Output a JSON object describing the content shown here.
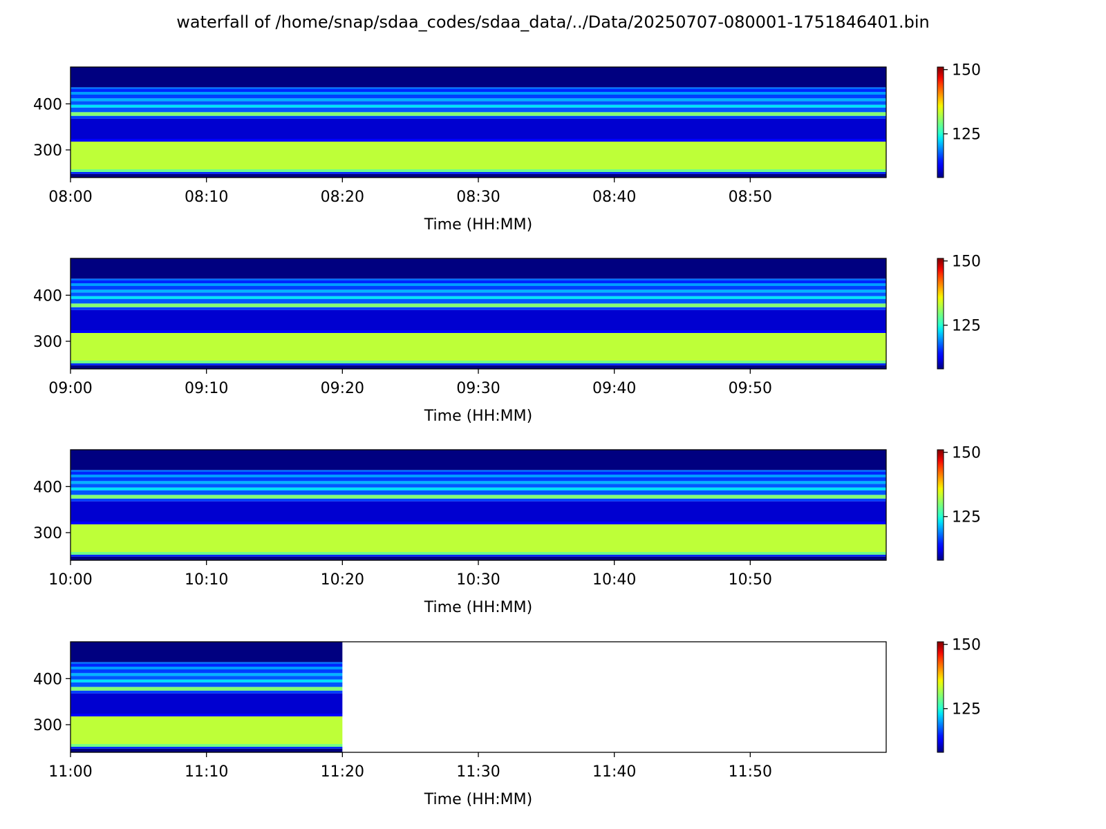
{
  "figure": {
    "title": "waterfall of /home/snap/sdaa_codes/sdaa_data/../Data/20250707-080001-1751846401.bin"
  },
  "chart_data": [
    {
      "type": "heatmap",
      "colormap": "jet",
      "xlabel": "Time (HH:MM)",
      "ylabel": "",
      "x_range": [
        "08:00",
        "09:00"
      ],
      "x_ticks": [
        "08:00",
        "08:10",
        "08:20",
        "08:30",
        "08:40",
        "08:50"
      ],
      "ylim": [
        240,
        480
      ],
      "y_ticks": [
        300,
        400
      ],
      "data_end": "09:00",
      "colorbar": {
        "vmin": 108,
        "vmax": 151,
        "ticks": [
          125,
          150
        ]
      },
      "bands": [
        {
          "from": 240,
          "to": 248,
          "value": 108
        },
        {
          "from": 248,
          "to": 252,
          "value": 115
        },
        {
          "from": 252,
          "to": 258,
          "value": 129
        },
        {
          "from": 258,
          "to": 318,
          "value": 133
        },
        {
          "from": 318,
          "to": 324,
          "value": 113
        },
        {
          "from": 324,
          "to": 368,
          "value": 111
        },
        {
          "from": 368,
          "to": 374,
          "value": 116
        },
        {
          "from": 374,
          "to": 382,
          "value": 130
        },
        {
          "from": 382,
          "to": 392,
          "value": 117
        },
        {
          "from": 392,
          "to": 398,
          "value": 123
        },
        {
          "from": 398,
          "to": 406,
          "value": 117
        },
        {
          "from": 406,
          "to": 412,
          "value": 121
        },
        {
          "from": 412,
          "to": 420,
          "value": 116
        },
        {
          "from": 420,
          "to": 426,
          "value": 120
        },
        {
          "from": 426,
          "to": 432,
          "value": 115
        },
        {
          "from": 432,
          "to": 436,
          "value": 118
        },
        {
          "from": 436,
          "to": 480,
          "value": 108
        }
      ]
    },
    {
      "type": "heatmap",
      "colormap": "jet",
      "xlabel": "Time (HH:MM)",
      "ylabel": "",
      "x_range": [
        "09:00",
        "10:00"
      ],
      "x_ticks": [
        "09:00",
        "09:10",
        "09:20",
        "09:30",
        "09:40",
        "09:50"
      ],
      "ylim": [
        240,
        480
      ],
      "y_ticks": [
        300,
        400
      ],
      "data_end": "10:00",
      "colorbar": {
        "vmin": 108,
        "vmax": 151,
        "ticks": [
          125,
          150
        ]
      },
      "bands": [
        {
          "from": 240,
          "to": 248,
          "value": 108
        },
        {
          "from": 248,
          "to": 252,
          "value": 115
        },
        {
          "from": 252,
          "to": 258,
          "value": 129
        },
        {
          "from": 258,
          "to": 318,
          "value": 133
        },
        {
          "from": 318,
          "to": 324,
          "value": 113
        },
        {
          "from": 324,
          "to": 368,
          "value": 111
        },
        {
          "from": 368,
          "to": 374,
          "value": 116
        },
        {
          "from": 374,
          "to": 382,
          "value": 130
        },
        {
          "from": 382,
          "to": 392,
          "value": 117
        },
        {
          "from": 392,
          "to": 398,
          "value": 123
        },
        {
          "from": 398,
          "to": 406,
          "value": 117
        },
        {
          "from": 406,
          "to": 412,
          "value": 121
        },
        {
          "from": 412,
          "to": 420,
          "value": 116
        },
        {
          "from": 420,
          "to": 426,
          "value": 120
        },
        {
          "from": 426,
          "to": 432,
          "value": 115
        },
        {
          "from": 432,
          "to": 436,
          "value": 118
        },
        {
          "from": 436,
          "to": 480,
          "value": 108
        }
      ]
    },
    {
      "type": "heatmap",
      "colormap": "jet",
      "xlabel": "Time (HH:MM)",
      "ylabel": "",
      "x_range": [
        "10:00",
        "11:00"
      ],
      "x_ticks": [
        "10:00",
        "10:10",
        "10:20",
        "10:30",
        "10:40",
        "10:50"
      ],
      "ylim": [
        240,
        480
      ],
      "y_ticks": [
        300,
        400
      ],
      "data_end": "11:00",
      "colorbar": {
        "vmin": 108,
        "vmax": 151,
        "ticks": [
          125,
          150
        ]
      },
      "bands": [
        {
          "from": 240,
          "to": 248,
          "value": 108
        },
        {
          "from": 248,
          "to": 252,
          "value": 115
        },
        {
          "from": 252,
          "to": 258,
          "value": 129
        },
        {
          "from": 258,
          "to": 318,
          "value": 133
        },
        {
          "from": 318,
          "to": 324,
          "value": 113
        },
        {
          "from": 324,
          "to": 368,
          "value": 111
        },
        {
          "from": 368,
          "to": 374,
          "value": 116
        },
        {
          "from": 374,
          "to": 382,
          "value": 130
        },
        {
          "from": 382,
          "to": 392,
          "value": 117
        },
        {
          "from": 392,
          "to": 398,
          "value": 123
        },
        {
          "from": 398,
          "to": 406,
          "value": 117
        },
        {
          "from": 406,
          "to": 412,
          "value": 121
        },
        {
          "from": 412,
          "to": 420,
          "value": 116
        },
        {
          "from": 420,
          "to": 426,
          "value": 120
        },
        {
          "from": 426,
          "to": 432,
          "value": 115
        },
        {
          "from": 432,
          "to": 436,
          "value": 118
        },
        {
          "from": 436,
          "to": 480,
          "value": 108
        }
      ]
    },
    {
      "type": "heatmap",
      "colormap": "jet",
      "xlabel": "Time (HH:MM)",
      "ylabel": "",
      "x_range": [
        "11:00",
        "12:00"
      ],
      "x_ticks": [
        "11:00",
        "11:10",
        "11:20",
        "11:30",
        "11:40",
        "11:50"
      ],
      "ylim": [
        240,
        480
      ],
      "y_ticks": [
        300,
        400
      ],
      "data_end": "11:20",
      "colorbar": {
        "vmin": 108,
        "vmax": 151,
        "ticks": [
          125,
          150
        ]
      },
      "bands": [
        {
          "from": 240,
          "to": 248,
          "value": 108
        },
        {
          "from": 248,
          "to": 252,
          "value": 115
        },
        {
          "from": 252,
          "to": 258,
          "value": 129
        },
        {
          "from": 258,
          "to": 318,
          "value": 133
        },
        {
          "from": 318,
          "to": 324,
          "value": 113
        },
        {
          "from": 324,
          "to": 368,
          "value": 111
        },
        {
          "from": 368,
          "to": 374,
          "value": 116
        },
        {
          "from": 374,
          "to": 382,
          "value": 130
        },
        {
          "from": 382,
          "to": 392,
          "value": 117
        },
        {
          "from": 392,
          "to": 398,
          "value": 123
        },
        {
          "from": 398,
          "to": 406,
          "value": 117
        },
        {
          "from": 406,
          "to": 412,
          "value": 121
        },
        {
          "from": 412,
          "to": 420,
          "value": 116
        },
        {
          "from": 420,
          "to": 426,
          "value": 120
        },
        {
          "from": 426,
          "to": 432,
          "value": 115
        },
        {
          "from": 432,
          "to": 436,
          "value": 118
        },
        {
          "from": 436,
          "to": 480,
          "value": 108
        }
      ]
    }
  ]
}
